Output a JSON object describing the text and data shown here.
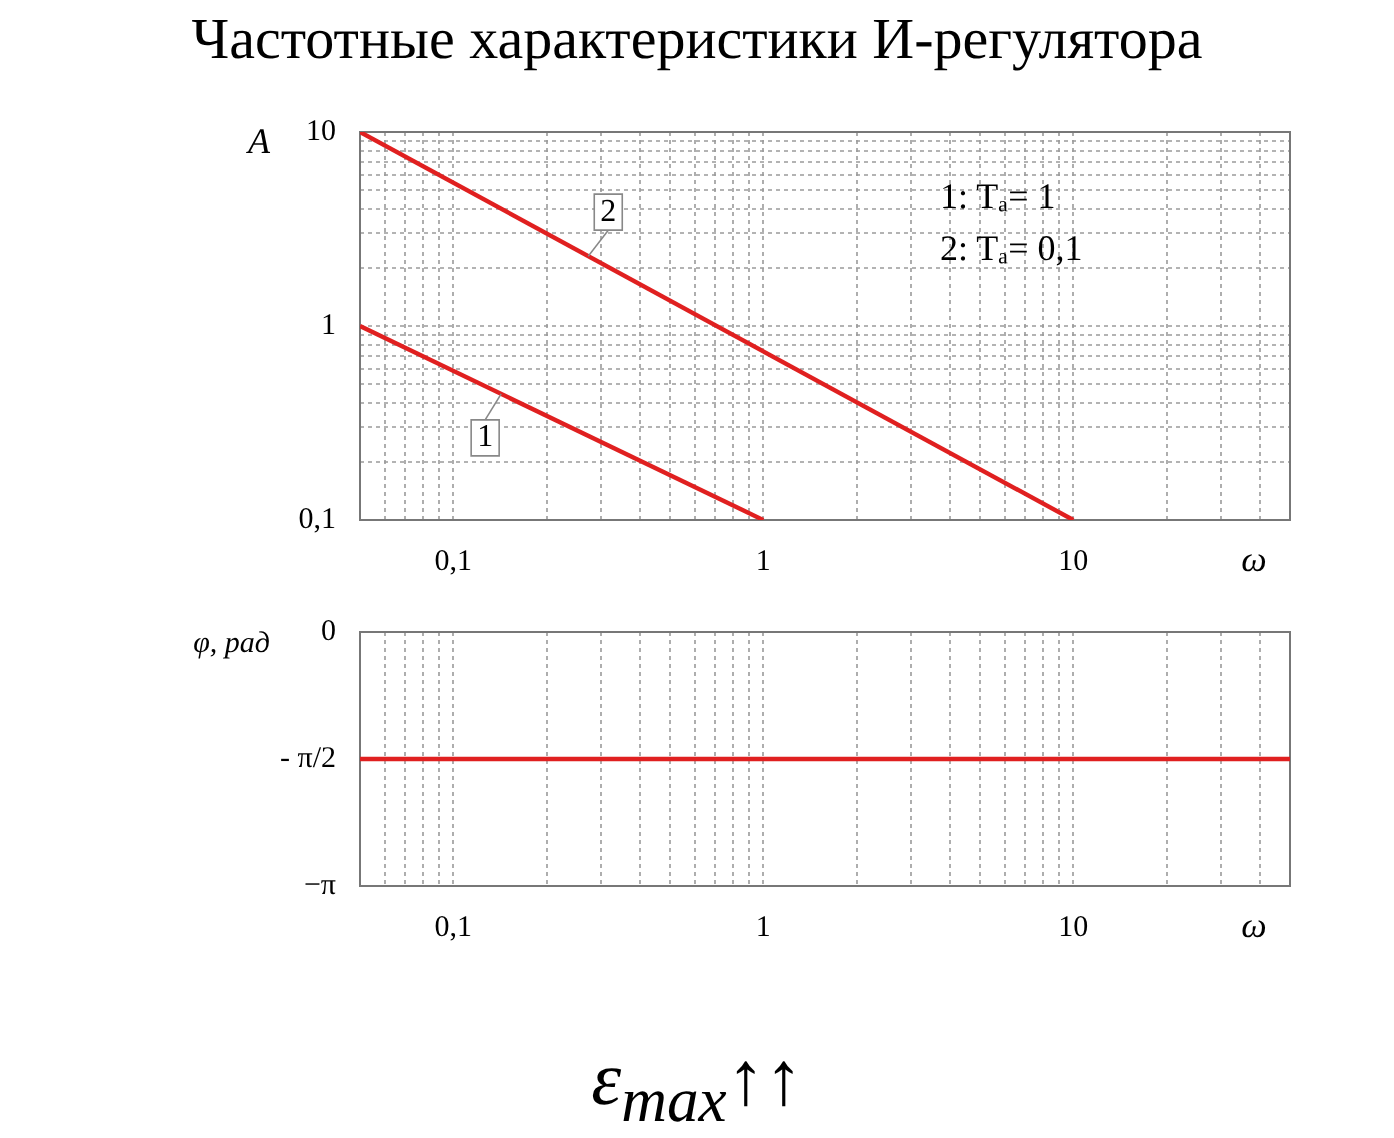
{
  "chart_data": [
    {
      "type": "line",
      "title": "Частотные характеристики И-регулятора",
      "xlabel": "ω",
      "ylabel": "A",
      "log": "xy",
      "grid": true,
      "legend": false,
      "marker": "none",
      "line_style": "solid",
      "xlim": [
        0.05,
        50
      ],
      "ylim": [
        0.1,
        10
      ],
      "xticks": [
        {
          "value": 0.05,
          "label": null
        },
        {
          "value": 0.06,
          "label": null
        },
        {
          "value": 0.07,
          "label": null
        },
        {
          "value": 0.08,
          "label": null
        },
        {
          "value": 0.09,
          "label": null
        },
        {
          "value": 0.1,
          "label": "0,1"
        },
        {
          "value": 0.2,
          "label": null
        },
        {
          "value": 0.3,
          "label": null
        },
        {
          "value": 0.4,
          "label": null
        },
        {
          "value": 0.5,
          "label": null
        },
        {
          "value": 0.6,
          "label": null
        },
        {
          "value": 0.7,
          "label": null
        },
        {
          "value": 0.8,
          "label": null
        },
        {
          "value": 0.9,
          "label": null
        },
        {
          "value": 1,
          "label": "1"
        },
        {
          "value": 2,
          "label": null
        },
        {
          "value": 3,
          "label": null
        },
        {
          "value": 4,
          "label": null
        },
        {
          "value": 5,
          "label": null
        },
        {
          "value": 6,
          "label": null
        },
        {
          "value": 7,
          "label": null
        },
        {
          "value": 8,
          "label": null
        },
        {
          "value": 9,
          "label": null
        },
        {
          "value": 10,
          "label": "10"
        },
        {
          "value": 20,
          "label": null
        },
        {
          "value": 30,
          "label": null
        },
        {
          "value": 40,
          "label": null
        },
        {
          "value": 50,
          "label": null
        }
      ],
      "yticks": [
        {
          "value": 0.1,
          "label": "0,1"
        },
        {
          "value": 0.2,
          "label": null
        },
        {
          "value": 0.3,
          "label": null
        },
        {
          "value": 0.4,
          "label": null
        },
        {
          "value": 0.5,
          "label": null
        },
        {
          "value": 0.6,
          "label": null
        },
        {
          "value": 0.7,
          "label": null
        },
        {
          "value": 0.8,
          "label": null
        },
        {
          "value": 0.9,
          "label": null
        },
        1,
        {
          "value": 2,
          "label": null
        },
        {
          "value": 3,
          "label": null
        },
        {
          "value": 4,
          "label": null
        },
        {
          "value": 5,
          "label": null
        },
        {
          "value": 6,
          "label": null
        },
        {
          "value": 7,
          "label": null
        },
        {
          "value": 8,
          "label": null
        },
        {
          "value": 9,
          "label": null
        },
        10
      ],
      "annotations": [
        "1: Tₐ= 1",
        "2: Tₐ= 0,1"
      ],
      "series": [
        {
          "name": "1",
          "color": "#e02020",
          "x": [
            0.05,
            1
          ],
          "values": [
            1,
            0.1
          ]
        },
        {
          "name": "2",
          "color": "#e02020",
          "x": [
            0.05,
            10
          ],
          "values": [
            10,
            0.1
          ]
        }
      ]
    },
    {
      "type": "line",
      "xlabel": "ω",
      "ylabel": "φ, рад",
      "log": "x",
      "grid": "x",
      "legend": false,
      "marker": "none",
      "line_style": "solid",
      "xlim": [
        0.05,
        50
      ],
      "ylim": [
        -3.1416,
        0
      ],
      "xticks": [
        {
          "value": 0.05,
          "label": null
        },
        {
          "value": 0.06,
          "label": null
        },
        {
          "value": 0.07,
          "label": null
        },
        {
          "value": 0.08,
          "label": null
        },
        {
          "value": 0.09,
          "label": null
        },
        {
          "value": 0.1,
          "label": "0,1"
        },
        {
          "value": 0.2,
          "label": null
        },
        {
          "value": 0.3,
          "label": null
        },
        {
          "value": 0.4,
          "label": null
        },
        {
          "value": 0.5,
          "label": null
        },
        {
          "value": 0.6,
          "label": null
        },
        {
          "value": 0.7,
          "label": null
        },
        {
          "value": 0.8,
          "label": null
        },
        {
          "value": 0.9,
          "label": null
        },
        {
          "value": 1,
          "label": "1"
        },
        {
          "value": 2,
          "label": null
        },
        {
          "value": 3,
          "label": null
        },
        {
          "value": 4,
          "label": null
        },
        {
          "value": 5,
          "label": null
        },
        {
          "value": 6,
          "label": null
        },
        {
          "value": 7,
          "label": null
        },
        {
          "value": 8,
          "label": null
        },
        {
          "value": 9,
          "label": null
        },
        {
          "value": 10,
          "label": "10"
        },
        {
          "value": 20,
          "label": null
        },
        {
          "value": 30,
          "label": null
        },
        {
          "value": 40,
          "label": null
        },
        {
          "value": 50,
          "label": null
        }
      ],
      "yticks": [
        {
          "value": -3.1416,
          "label": "−π"
        },
        {
          "value": -1.5708,
          "label": "- π/2"
        },
        0
      ],
      "annotations": [
        "ε$_{max}$↑↑"
      ],
      "series": [
        {
          "color": "#e02020",
          "x": [
            0.05,
            50
          ],
          "values": [
            -1.57,
            -1.57
          ]
        }
      ]
    }
  ]
}
